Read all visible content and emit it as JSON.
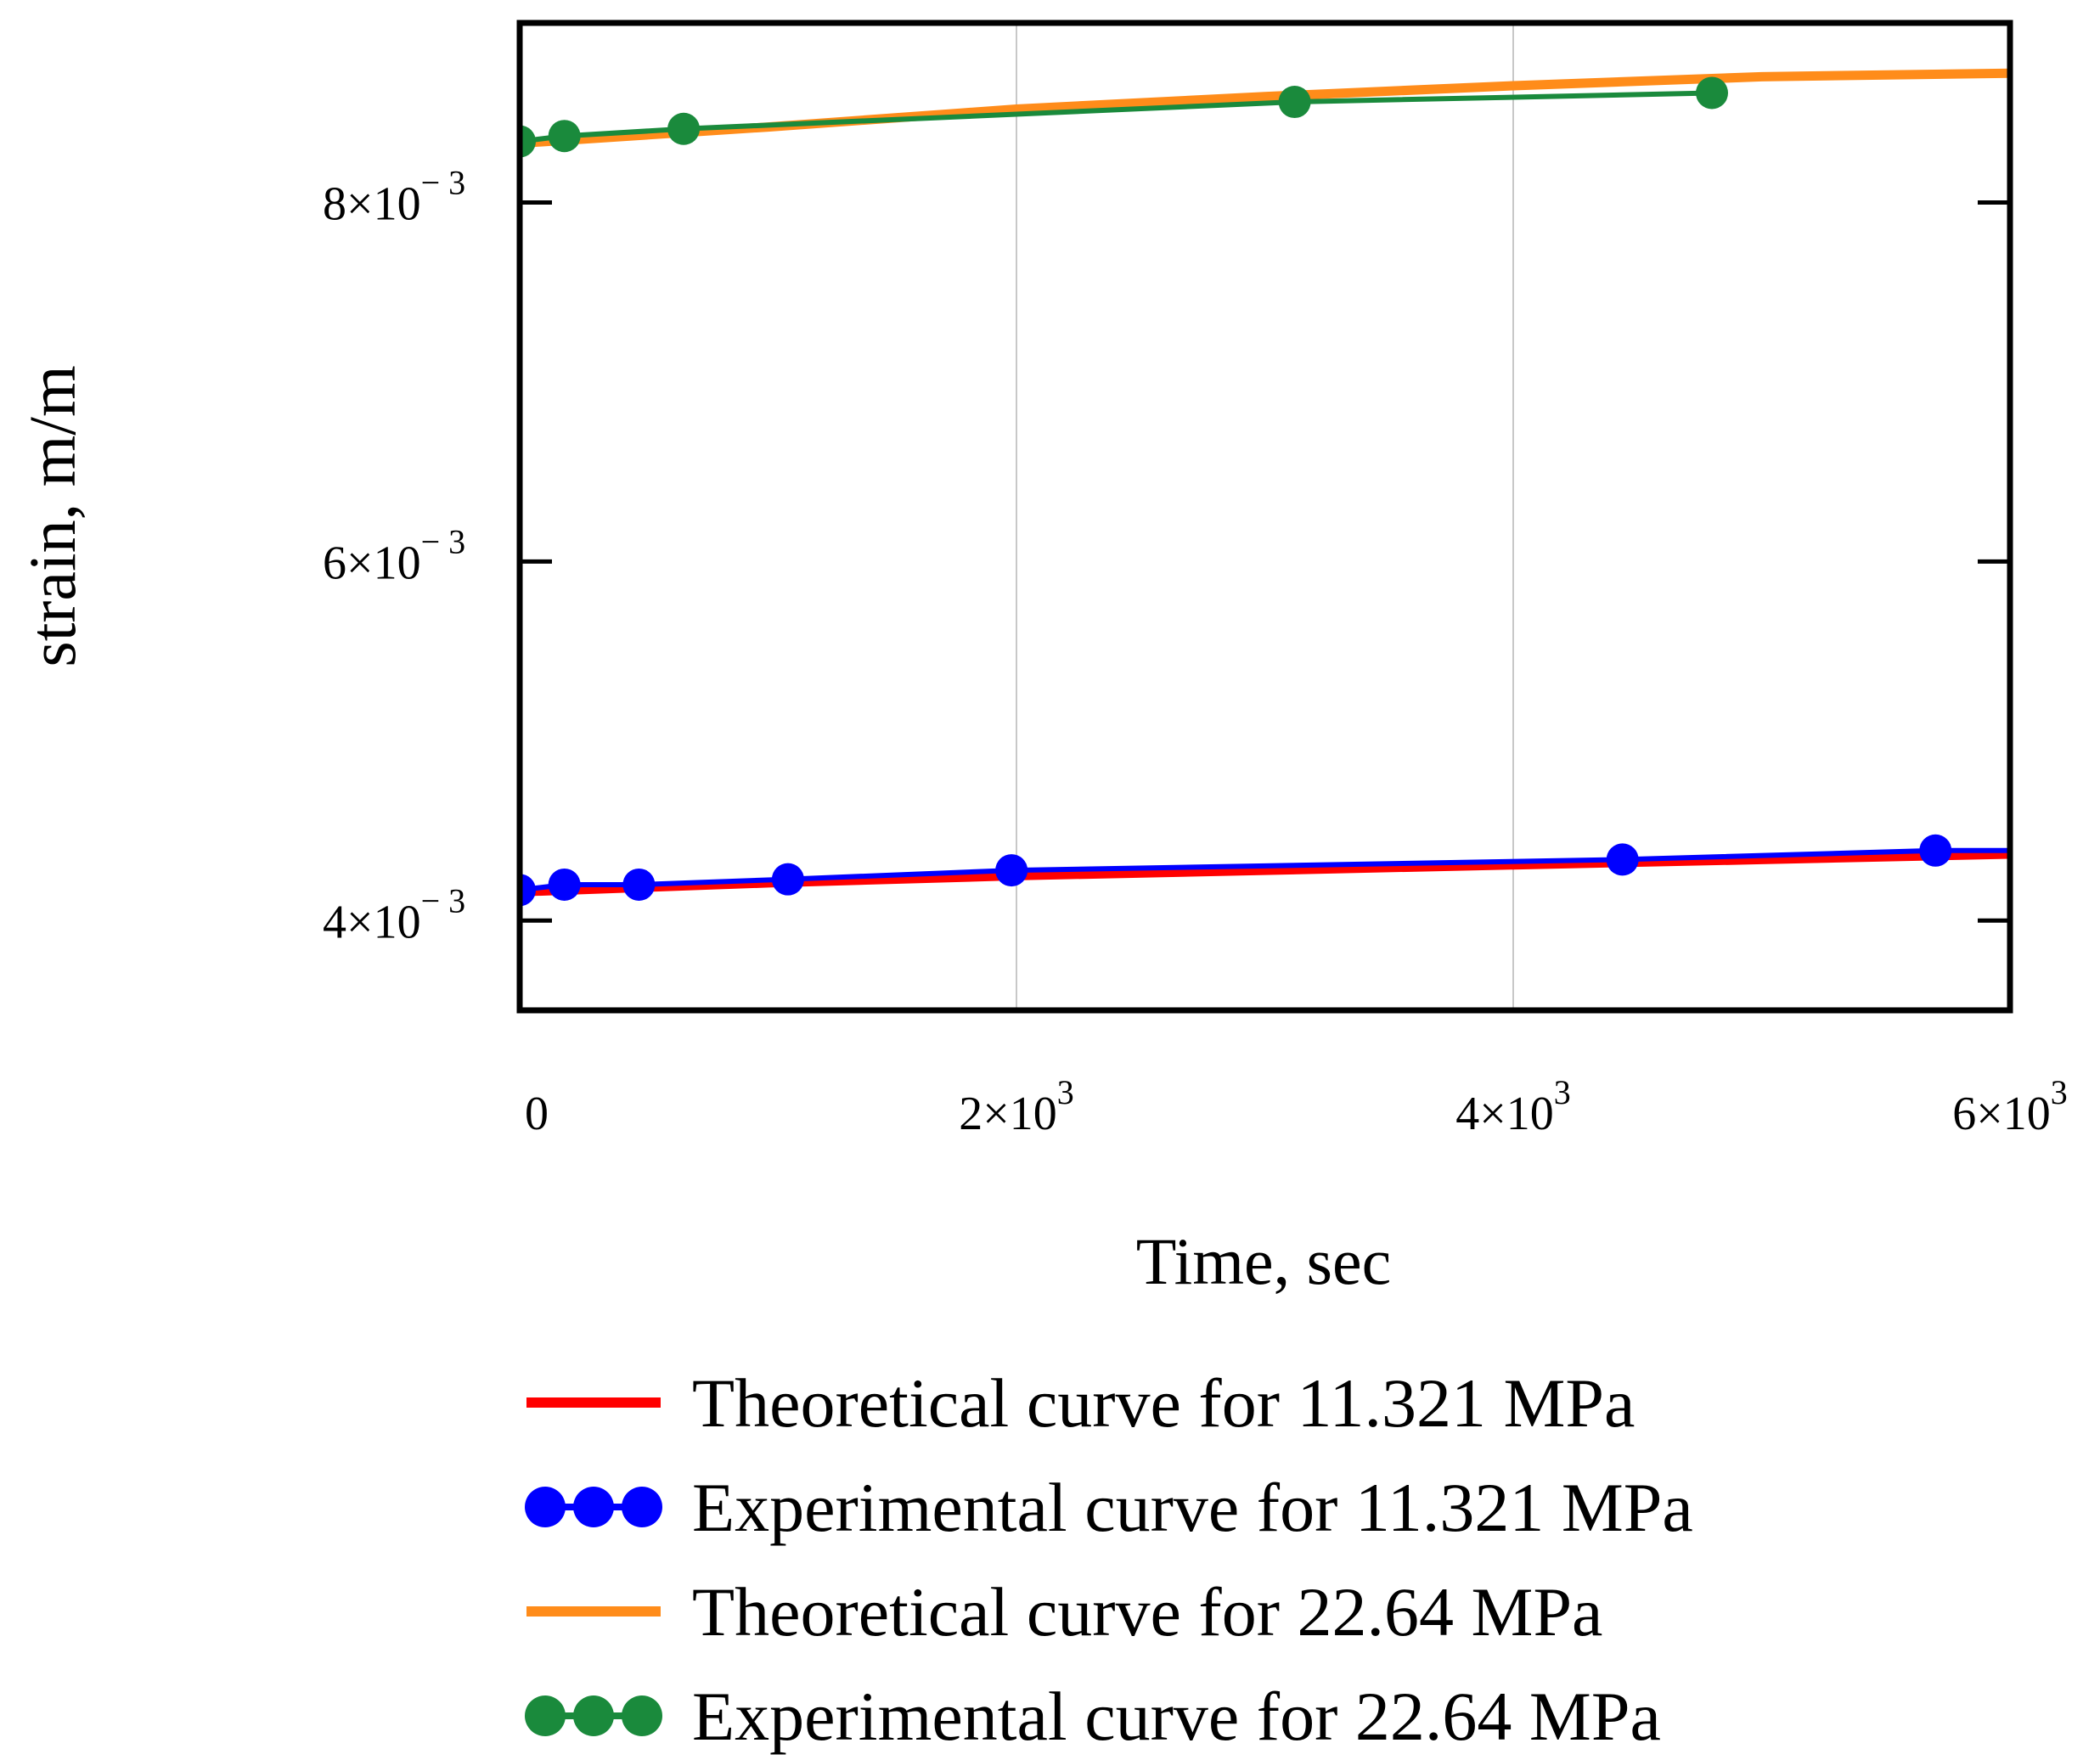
{
  "chart_data": {
    "type": "line",
    "title": "",
    "xlabel": "Time, sec",
    "ylabel": "strain, m/m",
    "xlim": [
      0,
      6000
    ],
    "ylim": [
      0.0035,
      0.009
    ],
    "x_grid": true,
    "y_grid": false,
    "x_ticks": [
      {
        "value": 0,
        "label": "0",
        "base": "",
        "exp": ""
      },
      {
        "value": 2000,
        "label": "2×10^3",
        "base": "2×10",
        "exp": "3"
      },
      {
        "value": 4000,
        "label": "4×10^3",
        "base": "4×10",
        "exp": "3"
      },
      {
        "value": 6000,
        "label": "6×10^3",
        "base": "6×10",
        "exp": "3"
      }
    ],
    "y_ticks": [
      {
        "value": 0.004,
        "label": "4×10^-3",
        "base": "4×10",
        "exp": "− 3"
      },
      {
        "value": 0.006,
        "label": "6×10^-3",
        "base": "6×10",
        "exp": "− 3"
      },
      {
        "value": 0.008,
        "label": "8×10^-3",
        "base": "8×10",
        "exp": "− 3"
      }
    ],
    "legend_position": "bottom",
    "series": [
      {
        "name": "Theoretical curve for 11.321 MPa",
        "style": "line",
        "color": "#ff0000",
        "x": [
          0,
          1000,
          2000,
          3000,
          4000,
          5000,
          6000
        ],
        "y": [
          0.00416,
          0.00421,
          0.00425,
          0.00428,
          0.00431,
          0.00434,
          0.00437
        ]
      },
      {
        "name": "Experimental curve for 11.321 MPa",
        "style": "line-markers",
        "color": "#0000ff",
        "x": [
          0,
          180,
          480,
          1080,
          1980,
          4440,
          5700,
          6000
        ],
        "y": [
          0.00417,
          0.0042,
          0.0042,
          0.00423,
          0.00428,
          0.00434,
          0.00439,
          0.00439
        ]
      },
      {
        "name": "Theoretical curve for 22.64 MPa",
        "style": "line",
        "color": "#ff8c1a",
        "x": [
          0,
          1000,
          2000,
          3000,
          4000,
          5000,
          6000
        ],
        "y": [
          0.00833,
          0.00842,
          0.00852,
          0.00859,
          0.00865,
          0.0087,
          0.00872
        ]
      },
      {
        "name": "Experimental curve for 22.64 MPa",
        "style": "line-markers",
        "color": "#1a8a3c",
        "x": [
          0,
          180,
          660,
          3120,
          4800
        ],
        "y": [
          0.00834,
          0.00837,
          0.00841,
          0.00856,
          0.00861
        ]
      }
    ]
  }
}
